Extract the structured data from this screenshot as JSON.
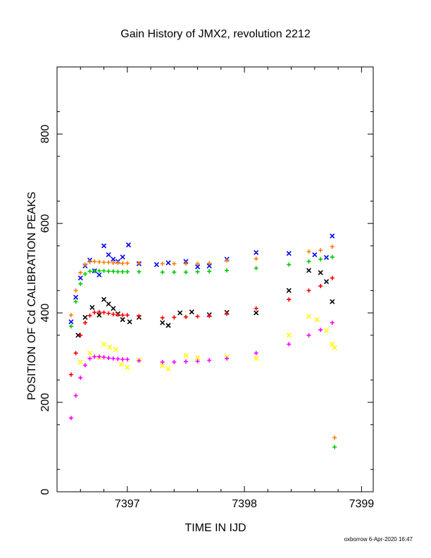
{
  "chart_data": {
    "type": "scatter",
    "title": "Gain History of JMX2, revolution 2212",
    "xlabel": "TIME IN IJD",
    "ylabel": "POSITION OF Cd CALIBRATION PEAKS",
    "xlim": [
      7396.4,
      7399.1
    ],
    "ylim": [
      0,
      950
    ],
    "xticks": [
      7397,
      7398,
      7399
    ],
    "xtick_labels": [
      "7397",
      "7398",
      "7399"
    ],
    "yticks": [
      0,
      200,
      400,
      600,
      800
    ],
    "ytick_labels": [
      "0",
      "200",
      "400",
      "600",
      "800"
    ],
    "grid": false,
    "footer": "oxborrow  6-Apr-2020 16:47",
    "series": [
      {
        "color": "#0000ff",
        "marker": "x",
        "points": [
          [
            7396.52,
            380
          ],
          [
            7396.56,
            435
          ],
          [
            7396.6,
            478
          ],
          [
            7396.64,
            505
          ],
          [
            7396.68,
            518
          ],
          [
            7396.72,
            494
          ],
          [
            7396.76,
            485
          ],
          [
            7396.8,
            550
          ],
          [
            7396.84,
            530
          ],
          [
            7396.88,
            520
          ],
          [
            7396.92,
            515
          ],
          [
            7396.96,
            525
          ],
          [
            7397.01,
            552
          ],
          [
            7397.1,
            510
          ],
          [
            7397.25,
            508
          ],
          [
            7397.35,
            512
          ],
          [
            7397.5,
            515
          ],
          [
            7397.6,
            503
          ],
          [
            7397.7,
            505
          ],
          [
            7397.85,
            520
          ],
          [
            7398.1,
            535
          ],
          [
            7398.38,
            533
          ],
          [
            7398.6,
            530
          ],
          [
            7398.7,
            524
          ],
          [
            7398.75,
            572
          ]
        ]
      },
      {
        "color": "#ff7f00",
        "marker": "+",
        "points": [
          [
            7396.52,
            395
          ],
          [
            7396.56,
            450
          ],
          [
            7396.6,
            490
          ],
          [
            7396.64,
            508
          ],
          [
            7396.68,
            514
          ],
          [
            7396.72,
            515
          ],
          [
            7396.76,
            514
          ],
          [
            7396.8,
            513
          ],
          [
            7396.84,
            513
          ],
          [
            7396.88,
            512
          ],
          [
            7396.92,
            512
          ],
          [
            7396.96,
            511
          ],
          [
            7397.0,
            511
          ],
          [
            7397.1,
            511
          ],
          [
            7397.3,
            510
          ],
          [
            7397.4,
            510
          ],
          [
            7397.5,
            510
          ],
          [
            7397.6,
            510
          ],
          [
            7397.7,
            511
          ],
          [
            7397.85,
            517
          ],
          [
            7398.1,
            521
          ],
          [
            7398.38,
            430
          ],
          [
            7398.55,
            537
          ],
          [
            7398.65,
            540
          ],
          [
            7398.75,
            548
          ],
          [
            7398.77,
            121
          ]
        ]
      },
      {
        "color": "#00cc00",
        "marker": "+",
        "points": [
          [
            7396.52,
            370
          ],
          [
            7396.56,
            425
          ],
          [
            7396.6,
            465
          ],
          [
            7396.64,
            487
          ],
          [
            7396.68,
            493
          ],
          [
            7396.72,
            494
          ],
          [
            7396.76,
            494
          ],
          [
            7396.8,
            494
          ],
          [
            7396.84,
            493
          ],
          [
            7396.88,
            493
          ],
          [
            7396.92,
            492
          ],
          [
            7396.96,
            492
          ],
          [
            7397.0,
            492
          ],
          [
            7397.1,
            492
          ],
          [
            7397.3,
            491
          ],
          [
            7397.4,
            491
          ],
          [
            7397.5,
            491
          ],
          [
            7397.6,
            492
          ],
          [
            7397.7,
            493
          ],
          [
            7397.85,
            495
          ],
          [
            7398.1,
            500
          ],
          [
            7398.38,
            508
          ],
          [
            7398.55,
            515
          ],
          [
            7398.65,
            520
          ],
          [
            7398.75,
            525
          ],
          [
            7398.77,
            100
          ]
        ]
      },
      {
        "color": "#000000",
        "marker": "x",
        "points": [
          [
            7396.58,
            350
          ],
          [
            7396.64,
            390
          ],
          [
            7396.7,
            412
          ],
          [
            7396.76,
            395
          ],
          [
            7396.8,
            430
          ],
          [
            7396.84,
            420
          ],
          [
            7396.88,
            410
          ],
          [
            7396.92,
            398
          ],
          [
            7396.96,
            385
          ],
          [
            7397.02,
            380
          ],
          [
            7397.1,
            390
          ],
          [
            7397.3,
            378
          ],
          [
            7397.35,
            372
          ],
          [
            7397.45,
            400
          ],
          [
            7397.55,
            402
          ],
          [
            7397.7,
            396
          ],
          [
            7397.85,
            401
          ],
          [
            7398.1,
            400
          ],
          [
            7398.38,
            450
          ],
          [
            7398.55,
            495
          ],
          [
            7398.65,
            490
          ],
          [
            7398.7,
            470
          ],
          [
            7398.75,
            425
          ]
        ]
      },
      {
        "color": "#ff0000",
        "marker": "+",
        "points": [
          [
            7396.52,
            262
          ],
          [
            7396.56,
            310
          ],
          [
            7396.6,
            350
          ],
          [
            7396.64,
            378
          ],
          [
            7396.68,
            394
          ],
          [
            7396.72,
            401
          ],
          [
            7396.76,
            402
          ],
          [
            7396.8,
            401
          ],
          [
            7396.84,
            399
          ],
          [
            7396.88,
            397
          ],
          [
            7396.92,
            396
          ],
          [
            7396.96,
            395
          ],
          [
            7397.0,
            395
          ],
          [
            7397.1,
            393
          ],
          [
            7397.3,
            389
          ],
          [
            7397.4,
            390
          ],
          [
            7397.5,
            391
          ],
          [
            7397.6,
            392
          ],
          [
            7397.7,
            393
          ],
          [
            7397.85,
            398
          ],
          [
            7398.1,
            410
          ],
          [
            7398.38,
            430
          ],
          [
            7398.55,
            450
          ],
          [
            7398.65,
            460
          ],
          [
            7398.75,
            478
          ]
        ]
      },
      {
        "color": "#ffff00",
        "marker": "x",
        "points": [
          [
            7396.6,
            290
          ],
          [
            7396.68,
            310
          ],
          [
            7396.76,
            300
          ],
          [
            7396.8,
            330
          ],
          [
            7396.85,
            323
          ],
          [
            7396.9,
            318
          ],
          [
            7396.95,
            285
          ],
          [
            7397.0,
            278
          ],
          [
            7397.1,
            295
          ],
          [
            7397.3,
            282
          ],
          [
            7397.35,
            275
          ],
          [
            7397.5,
            305
          ],
          [
            7397.6,
            300
          ],
          [
            7397.85,
            302
          ],
          [
            7398.1,
            298
          ],
          [
            7398.38,
            350
          ],
          [
            7398.55,
            392
          ],
          [
            7398.62,
            385
          ],
          [
            7398.7,
            360
          ],
          [
            7398.75,
            330
          ],
          [
            7398.77,
            322
          ]
        ]
      },
      {
        "color": "#ff00ff",
        "marker": "+",
        "points": [
          [
            7396.52,
            165
          ],
          [
            7396.56,
            215
          ],
          [
            7396.6,
            255
          ],
          [
            7396.64,
            283
          ],
          [
            7396.68,
            298
          ],
          [
            7396.72,
            302
          ],
          [
            7396.76,
            302
          ],
          [
            7396.8,
            301
          ],
          [
            7396.84,
            299
          ],
          [
            7396.88,
            298
          ],
          [
            7396.92,
            297
          ],
          [
            7396.96,
            296
          ],
          [
            7397.0,
            296
          ],
          [
            7397.1,
            293
          ],
          [
            7397.3,
            290
          ],
          [
            7397.4,
            290
          ],
          [
            7397.5,
            291
          ],
          [
            7397.6,
            292
          ],
          [
            7397.7,
            294
          ],
          [
            7397.85,
            298
          ],
          [
            7398.1,
            310
          ],
          [
            7398.38,
            330
          ],
          [
            7398.55,
            350
          ],
          [
            7398.65,
            362
          ],
          [
            7398.75,
            378
          ]
        ]
      }
    ]
  }
}
